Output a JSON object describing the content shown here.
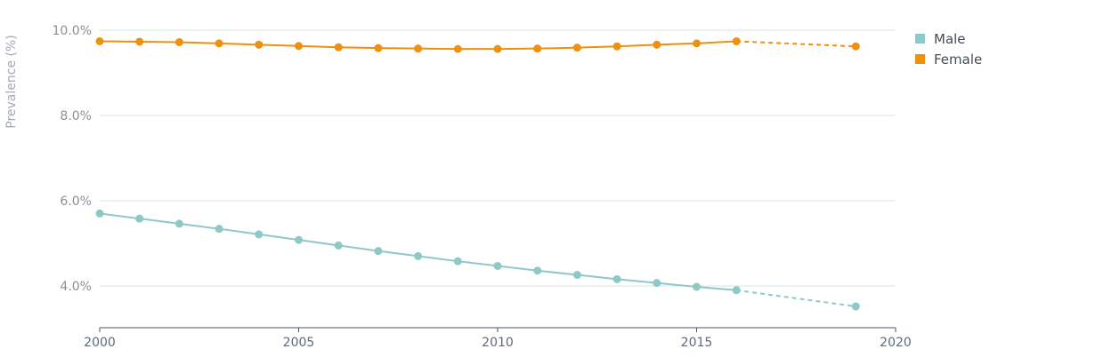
{
  "chart_data": {
    "type": "line",
    "ylabel": "Prevalence (%)",
    "xlim": [
      2000,
      2020
    ],
    "ylim": [
      3.0,
      10.0
    ],
    "x_ticks": [
      2000,
      2005,
      2010,
      2015,
      2020
    ],
    "y_ticks": [
      4.0,
      6.0,
      8.0,
      10.0
    ],
    "y_tick_labels": [
      "4.0%",
      "6.0%",
      "8.0%",
      "10.0%"
    ],
    "grid": "horizontal",
    "legend_position": "top-right",
    "series": [
      {
        "name": "Male",
        "color": "#8ec9c8",
        "x": [
          2000,
          2001,
          2002,
          2003,
          2004,
          2005,
          2006,
          2007,
          2008,
          2009,
          2010,
          2011,
          2012,
          2013,
          2014,
          2015,
          2016,
          2019
        ],
        "y": [
          5.7,
          5.58,
          5.46,
          5.34,
          5.21,
          5.08,
          4.95,
          4.82,
          4.7,
          4.58,
          4.47,
          4.36,
          4.26,
          4.16,
          4.07,
          3.98,
          3.9,
          3.52
        ],
        "projected_from_index": 16
      },
      {
        "name": "Female",
        "color": "#ee9010",
        "x": [
          2000,
          2001,
          2002,
          2003,
          2004,
          2005,
          2006,
          2007,
          2008,
          2009,
          2010,
          2011,
          2012,
          2013,
          2014,
          2015,
          2016,
          2019
        ],
        "y": [
          9.74,
          9.73,
          9.72,
          9.69,
          9.66,
          9.63,
          9.6,
          9.58,
          9.57,
          9.56,
          9.56,
          9.57,
          9.59,
          9.62,
          9.66,
          9.69,
          9.74,
          9.62
        ],
        "projected_from_index": 16
      }
    ]
  },
  "legend": {
    "items": [
      {
        "label": "Male",
        "color": "#8ec9c8"
      },
      {
        "label": "Female",
        "color": "#ee9010"
      }
    ]
  }
}
